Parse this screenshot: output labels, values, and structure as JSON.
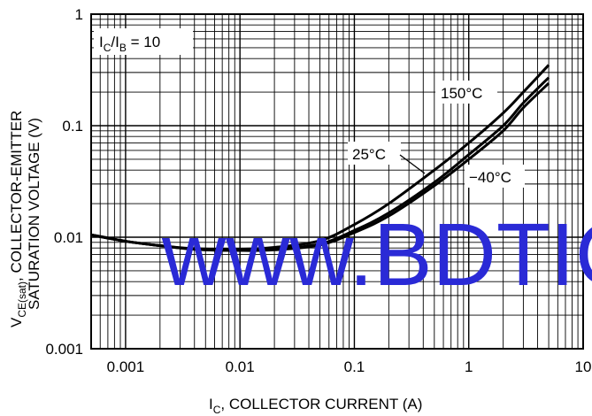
{
  "chart_data": {
    "type": "line",
    "x_scale": "log",
    "y_scale": "log",
    "xlim": [
      0.0005,
      10
    ],
    "ylim": [
      0.001,
      1
    ],
    "grid": true,
    "x_ticks": [
      {
        "value": 0.001,
        "label": "0.001"
      },
      {
        "value": 0.01,
        "label": "0.01"
      },
      {
        "value": 0.1,
        "label": "0.1"
      },
      {
        "value": 1,
        "label": "1"
      },
      {
        "value": 10,
        "label": "10"
      }
    ],
    "y_ticks": [
      {
        "value": 0.001,
        "label": "0.001"
      },
      {
        "value": 0.01,
        "label": "0.01"
      },
      {
        "value": 0.1,
        "label": "0.1"
      },
      {
        "value": 1,
        "label": "1"
      }
    ],
    "xlabel": {
      "main": "I",
      "sub": "C",
      "rest": ", COLLECTOR CURRENT (A)"
    },
    "ylabel": {
      "line1_main": "V",
      "line1_sub": "CE(sat)",
      "line1_rest": ", COLLECTOR-EMITTER",
      "line2": "SATURATION VOLTAGE (V)"
    },
    "annotation": {
      "p1": "I",
      "s1": "C",
      "p2": "/I",
      "s2": "B",
      "p3": " = 10"
    },
    "series": [
      {
        "name": "150°C",
        "x": [
          0.0005,
          0.001,
          0.002,
          0.004,
          0.01,
          0.02,
          0.05,
          0.1,
          0.2,
          0.5,
          1,
          2,
          3,
          5
        ],
        "y": [
          0.0105,
          0.0092,
          0.0084,
          0.0079,
          0.0078,
          0.0081,
          0.0093,
          0.013,
          0.02,
          0.04,
          0.07,
          0.13,
          0.2,
          0.35
        ]
      },
      {
        "name": "25°C",
        "x": [
          0.0005,
          0.001,
          0.002,
          0.004,
          0.01,
          0.02,
          0.05,
          0.1,
          0.2,
          0.5,
          1,
          2,
          3,
          5
        ],
        "y": [
          0.0105,
          0.0092,
          0.0084,
          0.0078,
          0.0076,
          0.0078,
          0.0087,
          0.0115,
          0.0165,
          0.031,
          0.055,
          0.1,
          0.16,
          0.27
        ]
      },
      {
        "name": "−40°C",
        "x": [
          0.0005,
          0.001,
          0.002,
          0.004,
          0.01,
          0.02,
          0.05,
          0.1,
          0.2,
          0.5,
          1,
          2,
          3,
          5
        ],
        "y": [
          0.0105,
          0.0092,
          0.0084,
          0.0078,
          0.0076,
          0.0077,
          0.0085,
          0.011,
          0.0155,
          0.029,
          0.05,
          0.09,
          0.145,
          0.24
        ]
      }
    ],
    "series_labels": [
      "150°C",
      "25°C",
      "−40°C"
    ],
    "watermark": "www.BDTIC"
  }
}
